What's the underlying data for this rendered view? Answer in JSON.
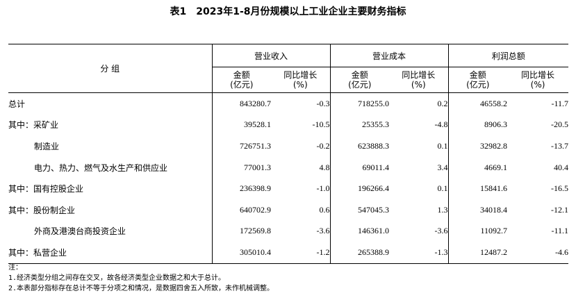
{
  "title": {
    "number": "表1",
    "text": "2023年1-8月份规模以上工业企业主要财务指标"
  },
  "header": {
    "group_label": "分  组",
    "groups": [
      "营业收入",
      "营业成本",
      "利润总额"
    ],
    "amount_label_1": "金额",
    "amount_label_2": "(亿元)",
    "growth_label_1": "同比增长",
    "growth_label_2": "(%)"
  },
  "rows": [
    {
      "label": "总计",
      "values": [
        "843280.7",
        "-0.3",
        "718255.0",
        "0.2",
        "46558.2",
        "-11.7"
      ]
    },
    {
      "label": "其中：采矿业",
      "values": [
        "39528.1",
        "-10.5",
        "25355.3",
        "-4.8",
        "8906.3",
        "-20.5"
      ]
    },
    {
      "label": "制造业",
      "values": [
        "726751.3",
        "-0.2",
        "623888.3",
        "0.1",
        "32982.8",
        "-13.7"
      ]
    },
    {
      "label": "电力、热力、燃气及水生产和供应业",
      "values": [
        "77001.3",
        "4.8",
        "69011.4",
        "3.4",
        "4669.1",
        "40.4"
      ]
    },
    {
      "label": "其中：国有控股企业",
      "values": [
        "236398.9",
        "-1.0",
        "196266.4",
        "0.1",
        "15841.6",
        "-16.5"
      ]
    },
    {
      "label": "其中：股份制企业",
      "values": [
        "640702.9",
        "0.6",
        "547045.3",
        "1.3",
        "34018.4",
        "-12.1"
      ]
    },
    {
      "label": "外商及港澳台商投资企业",
      "values": [
        "172569.8",
        "-3.6",
        "146361.0",
        "-3.6",
        "11092.7",
        "-11.1"
      ]
    },
    {
      "label": "其中：私营企业",
      "values": [
        "305010.4",
        "-1.2",
        "265388.9",
        "-1.3",
        "12487.2",
        "-4.6"
      ]
    }
  ],
  "notes": [
    "注：",
    "1.经济类型分组之间存在交叉，故各经济类型企业数据之和大于总计。",
    "2.本表部分指标存在总计不等于分项之和情况，是数据四舍五入所致，未作机械调整。"
  ]
}
